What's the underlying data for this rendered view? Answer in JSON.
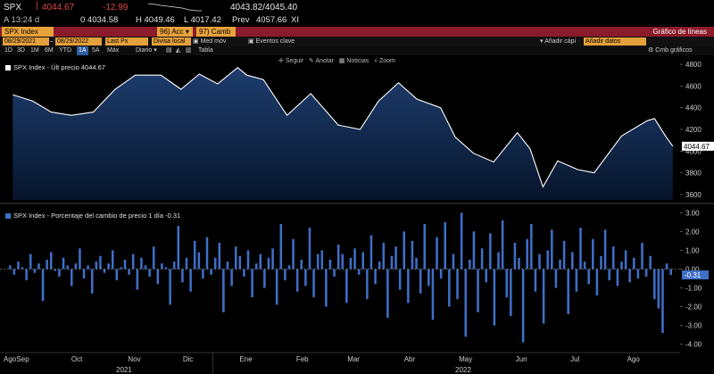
{
  "quote": {
    "ticker": "SPX",
    "last": "4044.67",
    "change": "-12.99",
    "bid_ask": "4043.82/4045.40",
    "time": "A 13:24 d",
    "open": "0 4034.58",
    "high": "H 4049.46",
    "low": "L 4017.42",
    "prev_label": "Prev",
    "prev": "4057.66",
    "xi": "XI"
  },
  "function_bar": {
    "security": "SPX Index",
    "acc": "Acc",
    "camb": "Camb",
    "title": "Gráfico de líneas"
  },
  "date_row": {
    "start": "08/29/2021",
    "end": "08/29/2022",
    "field": "Last Px",
    "compare": "Divisa local",
    "med_mov": "Med móv",
    "eventos": "Eventos clave",
    "anadir": "Añadir cápi",
    "anadir_field": "Añadir datos"
  },
  "period_row": {
    "periods": [
      "1D",
      "3D",
      "1M",
      "6M",
      "YTD",
      "1A",
      "5A",
      "Máx"
    ],
    "selected": "1A",
    "freq": "Diario",
    "tabla": "Tabla",
    "omb": "Cmb gráficos"
  },
  "toolbar": {
    "seguir": "Seguir",
    "anotar": "Anotar",
    "noticias": "Noticias",
    "zoom": "Zoom"
  },
  "upper_label": "SPX Index - Últ precio 4044.67",
  "lower_label": "SPX Index - Porcentaje del cambio de precio 1 día -0.31",
  "last_tag": "4044.67",
  "pct_tag": "-0.31",
  "colors": {
    "line": "#ffffff",
    "area_top": "#1d3d6e",
    "area_bottom": "#07152b",
    "bar": "#3f6fc8",
    "bg": "#000000",
    "red_bar": "#8b1a2a",
    "orange": "#e8a23a"
  },
  "chart_data": [
    {
      "type": "area",
      "title": "SPX Index - Últ precio 4044.67",
      "ylim": [
        3550,
        4850
      ],
      "yticks": [
        3600,
        3800,
        4000,
        4200,
        4400,
        4600,
        4800
      ],
      "x": [
        "2021-08-30",
        "2021-09-10",
        "2021-09-20",
        "2021-10-01",
        "2021-10-13",
        "2021-10-25",
        "2021-11-05",
        "2021-11-19",
        "2021-11-30",
        "2021-12-10",
        "2021-12-20",
        "2021-12-31",
        "2022-01-05",
        "2022-01-14",
        "2022-01-27",
        "2022-02-09",
        "2022-02-24",
        "2022-03-08",
        "2022-03-18",
        "2022-03-29",
        "2022-04-08",
        "2022-04-21",
        "2022-04-29",
        "2022-05-09",
        "2022-05-20",
        "2022-06-02",
        "2022-06-09",
        "2022-06-16",
        "2022-06-24",
        "2022-07-05",
        "2022-07-14",
        "2022-07-29",
        "2022-08-12",
        "2022-08-16",
        "2022-08-22",
        "2022-08-26"
      ],
      "values": [
        4520,
        4460,
        4360,
        4330,
        4360,
        4570,
        4700,
        4700,
        4570,
        4710,
        4620,
        4770,
        4700,
        4660,
        4330,
        4530,
        4240,
        4200,
        4460,
        4630,
        4480,
        4400,
        4130,
        3980,
        3900,
        4170,
        4020,
        3670,
        3910,
        3830,
        3800,
        4140,
        4280,
        4300,
        4140,
        4045
      ],
      "xticks": [
        "Ago",
        "Sep",
        "Oct",
        "Nov",
        "Dic",
        "Ene",
        "Feb",
        "Mar",
        "Abr",
        "May",
        "Jun",
        "Jul",
        "Ago"
      ],
      "year_labels": [
        "2021",
        "2022"
      ],
      "grid": false
    },
    {
      "type": "bar",
      "title": "SPX Index - Porcentaje del cambio de precio 1 día -0.31",
      "ylim": [
        -4.3,
        3.3
      ],
      "yticks": [
        3.0,
        2.0,
        1.0,
        0.0,
        -1.0,
        -2.0,
        -3.0,
        -4.0
      ],
      "ytick_labels": [
        "3.00",
        "2.00",
        "1.00",
        "0.00",
        "-1.00",
        "-2.00",
        "-3.00",
        "-4.00"
      ],
      "values": [
        0.2,
        -0.3,
        0.4,
        0.1,
        -0.6,
        0.8,
        -0.2,
        0.3,
        -1.7,
        0.5,
        0.9,
        -0.1,
        -0.4,
        0.6,
        0.2,
        -0.9,
        0.3,
        1.1,
        -0.5,
        0.2,
        -1.3,
        0.4,
        0.7,
        -0.2,
        0.3,
        1.0,
        -0.6,
        0.1,
        0.5,
        -0.3,
        0.8,
        -1.1,
        0.6,
        0.2,
        -0.4,
        1.2,
        -0.8,
        0.3,
        0.1,
        -1.9,
        0.4,
        2.3,
        -0.7,
        0.6,
        -1.2,
        1.5,
        0.9,
        -0.5,
        1.7,
        -0.3,
        0.6,
        1.4,
        -2.3,
        0.4,
        -0.9,
        1.2,
        0.7,
        -0.4,
        1.0,
        -1.5,
        0.3,
        0.8,
        -1.0,
        0.6,
        1.1,
        -1.9,
        2.4,
        -0.6,
        0.2,
        1.6,
        -1.2,
        0.5,
        -0.9,
        2.2,
        -1.5,
        0.8,
        1.0,
        -2.0,
        0.5,
        -0.4,
        1.3,
        0.8,
        -1.8,
        0.6,
        1.1,
        -0.3,
        0.9,
        -1.6,
        1.8,
        -0.8,
        0.4,
        1.4,
        -2.6,
        0.7,
        1.2,
        -1.1,
        2.0,
        -1.8,
        1.5,
        0.6,
        -1.3,
        2.4,
        -0.9,
        -2.7,
        1.7,
        -0.5,
        2.5,
        -2.0,
        0.8,
        -1.6,
        3.0,
        -3.6,
        0.5,
        2.0,
        -2.3,
        1.1,
        -0.7,
        1.9,
        -3.0,
        0.9,
        2.6,
        -1.5,
        -2.5,
        1.4,
        0.6,
        -3.9,
        1.6,
        2.4,
        -1.2,
        0.8,
        -2.9,
        1.0,
        2.1,
        -1.0,
        0.5,
        1.5,
        -2.4,
        0.9,
        -1.2,
        2.2,
        0.4,
        -0.8,
        1.6,
        -1.4,
        0.7,
        2.1,
        -0.6,
        1.2,
        -0.9,
        0.4,
        1.0,
        -0.7,
        0.6,
        -0.5,
        1.4,
        -0.4,
        0.7,
        -1.6,
        -2.1,
        -3.4,
        0.3,
        -0.31
      ]
    }
  ]
}
